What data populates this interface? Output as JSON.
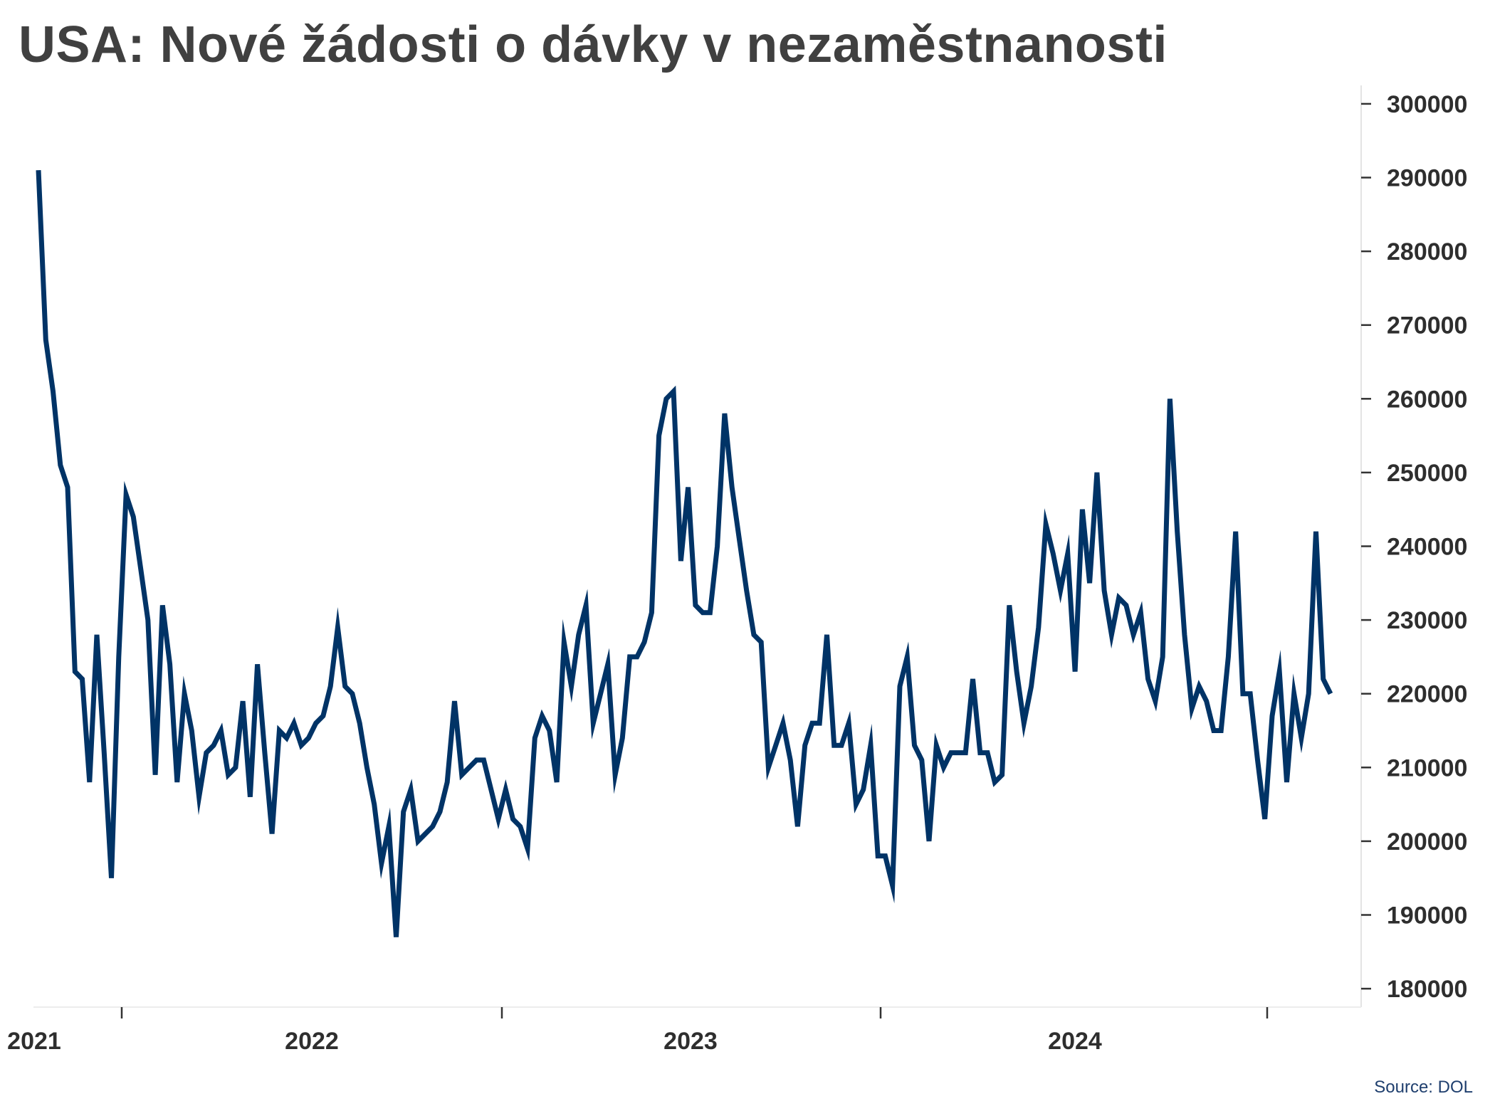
{
  "chart_data": {
    "type": "line",
    "title": "USA: Nové žádosti o dávky v nezaměstnanosti",
    "source": "Source: DOL",
    "xlabel": "",
    "ylabel": "",
    "x_tick_labels": [
      "2021",
      "2022",
      "2023",
      "2024"
    ],
    "y_tick_labels": [
      "180000",
      "190000",
      "200000",
      "210000",
      "220000",
      "230000",
      "240000",
      "250000",
      "260000",
      "270000",
      "280000",
      "290000",
      "300000"
    ],
    "ylim": [
      177500,
      302500
    ],
    "grid": false,
    "legend": "none",
    "y_axis_position": "right",
    "line_color": "#003366",
    "x_period": "weekly, from mid-March 2021 to autumn 2024",
    "series": [
      {
        "values": [
          291000,
          268000,
          261000,
          251000,
          248000,
          223000,
          222000,
          208000,
          228000,
          212000,
          195000,
          225000,
          247000,
          244000,
          237000,
          230000,
          209000,
          232000,
          224000,
          208000,
          220000,
          215000,
          206000,
          212000,
          213000,
          215000,
          209000,
          210000,
          219000,
          206000,
          224000,
          212000,
          201000,
          215000,
          214000,
          216000,
          213000,
          214000,
          216000,
          217000,
          221000,
          229000,
          221000,
          220000,
          216000,
          210000,
          205000,
          197000,
          202000,
          187000,
          204000,
          207000,
          200000,
          201000,
          202000,
          204000,
          208000,
          219000,
          209000,
          210000,
          211000,
          211000,
          207000,
          203000,
          207000,
          203000,
          202000,
          199000,
          214000,
          217000,
          215000,
          208000,
          227000,
          221000,
          228000,
          232000,
          216000,
          220000,
          224000,
          209000,
          214000,
          225000,
          225000,
          227000,
          231000,
          255000,
          260000,
          261000,
          238000,
          248000,
          232000,
          231000,
          231000,
          240000,
          258000,
          248000,
          241000,
          234000,
          228000,
          227000,
          210000,
          213000,
          216000,
          211000,
          202000,
          213000,
          216000,
          216000,
          228000,
          213000,
          213000,
          216000,
          205000,
          207000,
          213000,
          198000,
          198000,
          194000,
          221000,
          225000,
          213000,
          211000,
          200000,
          213000,
          210000,
          212000,
          212000,
          212000,
          222000,
          212000,
          212000,
          208000,
          209000,
          232000,
          223000,
          216000,
          221000,
          229000,
          243000,
          239000,
          234000,
          239000,
          223000,
          245000,
          235000,
          250000,
          234000,
          228000,
          233000,
          232000,
          228000,
          231000,
          222000,
          219000,
          225000,
          260000,
          242000,
          228000,
          218000,
          221000,
          219000,
          215000,
          215000,
          225000,
          242000,
          220000,
          220000,
          211000,
          203000,
          217000,
          223000,
          208000,
          220000,
          214000,
          220000,
          242000,
          222000,
          220000
        ]
      }
    ]
  }
}
